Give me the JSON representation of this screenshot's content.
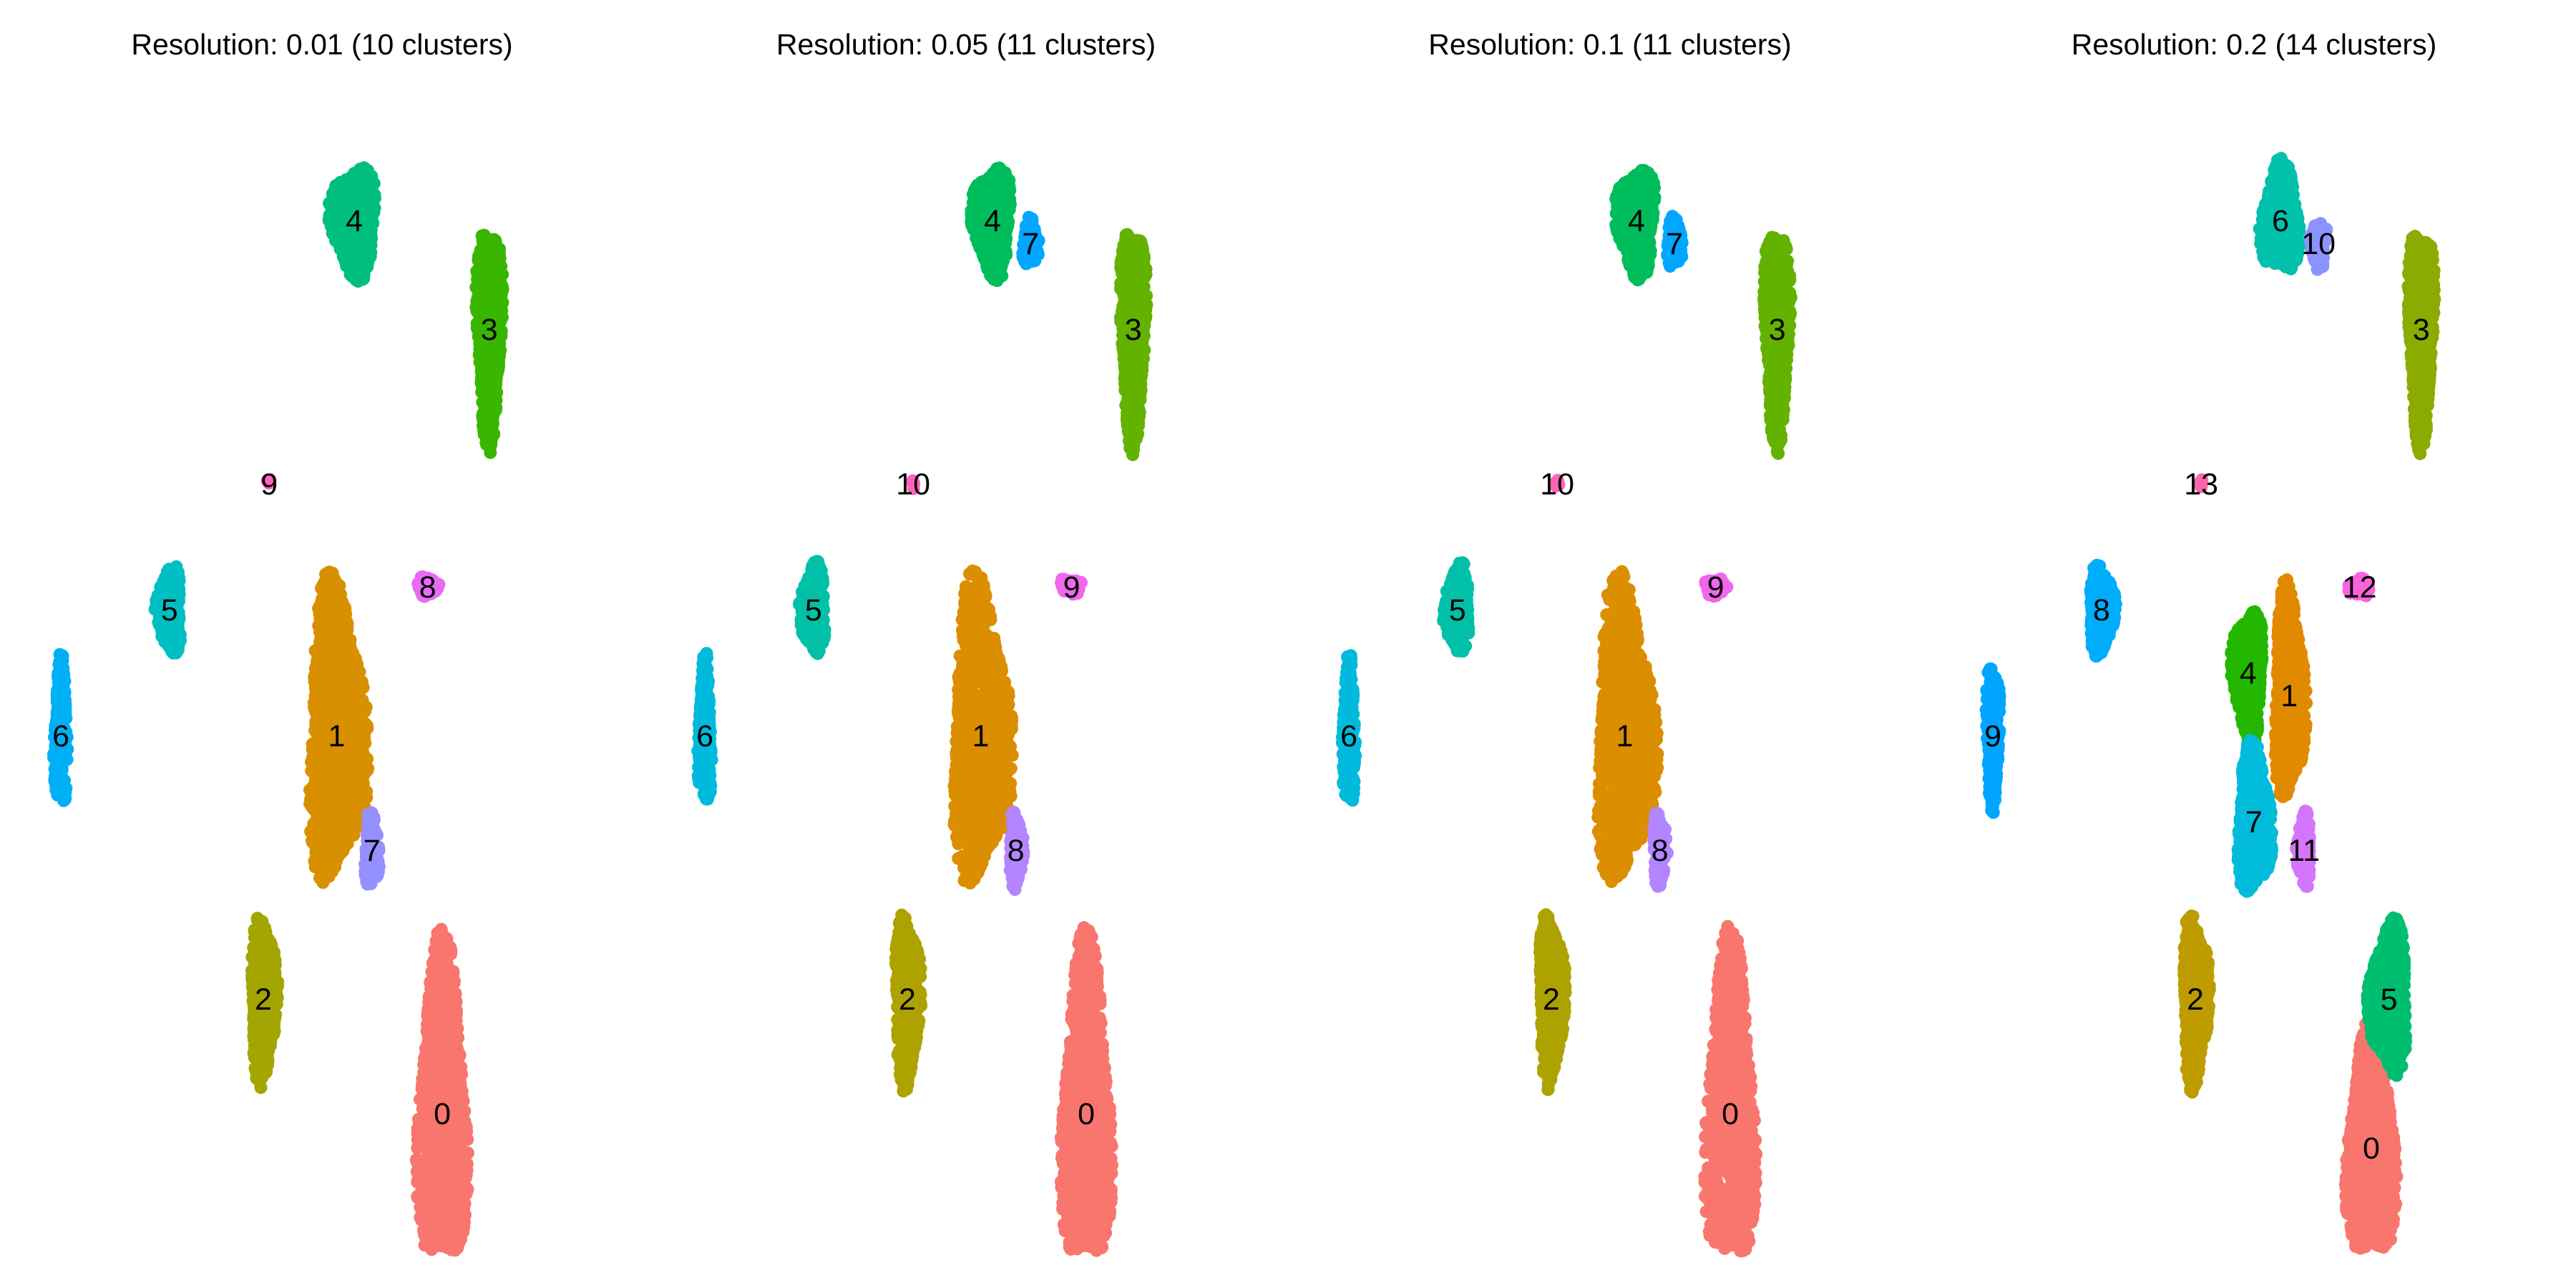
{
  "chart_data": [
    {
      "type": "scatter",
      "title": "Resolution: 0.01 (10 clusters)",
      "xlabel": "",
      "ylabel": "",
      "grid": false,
      "axes_visible": false,
      "clusters": [
        {
          "label": "0",
          "color": "#F8766D",
          "x": 0.705,
          "y": 0.115,
          "rx": 0.048,
          "ry": 0.165
        },
        {
          "label": "1",
          "color": "#D89000",
          "x": 0.525,
          "y": 0.445,
          "rx": 0.057,
          "ry": 0.15
        },
        {
          "label": "2",
          "color": "#A3A500",
          "x": 0.4,
          "y": 0.215,
          "rx": 0.025,
          "ry": 0.085
        },
        {
          "label": "3",
          "color": "#39B600",
          "x": 0.785,
          "y": 0.8,
          "rx": 0.025,
          "ry": 0.11
        },
        {
          "label": "4",
          "color": "#00BF7D",
          "x": 0.555,
          "y": 0.895,
          "rx": 0.045,
          "ry": 0.055
        },
        {
          "label": "5",
          "color": "#00BFC4",
          "x": 0.24,
          "y": 0.555,
          "rx": 0.025,
          "ry": 0.045
        },
        {
          "label": "6",
          "color": "#00B0F6",
          "x": 0.055,
          "y": 0.445,
          "rx": 0.013,
          "ry": 0.075
        },
        {
          "label": "7",
          "color": "#9590FF",
          "x": 0.585,
          "y": 0.345,
          "rx": 0.014,
          "ry": 0.038
        },
        {
          "label": "8",
          "color": "#E76BF3",
          "x": 0.68,
          "y": 0.575,
          "rx": 0.022,
          "ry": 0.01
        },
        {
          "label": "9",
          "color": "#FF62BC",
          "x": 0.41,
          "y": 0.665,
          "rx": 0.005,
          "ry": 0.005
        }
      ]
    },
    {
      "type": "scatter",
      "title": "Resolution: 0.05 (11 clusters)",
      "xlabel": "",
      "ylabel": "",
      "grid": false,
      "axes_visible": false,
      "clusters": [
        {
          "label": "0",
          "color": "#F8766D",
          "x": 0.705,
          "y": 0.115,
          "rx": 0.048,
          "ry": 0.165
        },
        {
          "label": "1",
          "color": "#DB8E00",
          "x": 0.525,
          "y": 0.445,
          "rx": 0.057,
          "ry": 0.15
        },
        {
          "label": "2",
          "color": "#AEA200",
          "x": 0.4,
          "y": 0.215,
          "rx": 0.025,
          "ry": 0.085
        },
        {
          "label": "3",
          "color": "#64B200",
          "x": 0.785,
          "y": 0.8,
          "rx": 0.025,
          "ry": 0.11
        },
        {
          "label": "4",
          "color": "#00BD5C",
          "x": 0.545,
          "y": 0.895,
          "rx": 0.038,
          "ry": 0.055
        },
        {
          "label": "5",
          "color": "#00C1A7",
          "x": 0.24,
          "y": 0.555,
          "rx": 0.025,
          "ry": 0.045
        },
        {
          "label": "6",
          "color": "#00BADE",
          "x": 0.055,
          "y": 0.445,
          "rx": 0.013,
          "ry": 0.075
        },
        {
          "label": "7",
          "color": "#00A6FF",
          "x": 0.61,
          "y": 0.875,
          "rx": 0.016,
          "ry": 0.025
        },
        {
          "label": "8",
          "color": "#B385FF",
          "x": 0.585,
          "y": 0.345,
          "rx": 0.014,
          "ry": 0.038
        },
        {
          "label": "9",
          "color": "#EF67EB",
          "x": 0.68,
          "y": 0.575,
          "rx": 0.022,
          "ry": 0.01
        },
        {
          "label": "10",
          "color": "#FF63B6",
          "x": 0.41,
          "y": 0.665,
          "rx": 0.005,
          "ry": 0.005
        }
      ]
    },
    {
      "type": "scatter",
      "title": "Resolution: 0.1 (11 clusters)",
      "xlabel": "",
      "ylabel": "",
      "grid": false,
      "axes_visible": false,
      "clusters": [
        {
          "label": "0",
          "color": "#F8766D",
          "x": 0.705,
          "y": 0.115,
          "rx": 0.048,
          "ry": 0.165
        },
        {
          "label": "1",
          "color": "#DB8E00",
          "x": 0.525,
          "y": 0.445,
          "rx": 0.057,
          "ry": 0.15
        },
        {
          "label": "2",
          "color": "#AEA200",
          "x": 0.4,
          "y": 0.215,
          "rx": 0.025,
          "ry": 0.085
        },
        {
          "label": "3",
          "color": "#64B200",
          "x": 0.785,
          "y": 0.8,
          "rx": 0.025,
          "ry": 0.11
        },
        {
          "label": "4",
          "color": "#00BD5C",
          "x": 0.545,
          "y": 0.895,
          "rx": 0.038,
          "ry": 0.055
        },
        {
          "label": "5",
          "color": "#00C1A7",
          "x": 0.24,
          "y": 0.555,
          "rx": 0.025,
          "ry": 0.045
        },
        {
          "label": "6",
          "color": "#00BADE",
          "x": 0.055,
          "y": 0.445,
          "rx": 0.013,
          "ry": 0.075
        },
        {
          "label": "7",
          "color": "#00A6FF",
          "x": 0.61,
          "y": 0.875,
          "rx": 0.016,
          "ry": 0.025
        },
        {
          "label": "8",
          "color": "#B385FF",
          "x": 0.585,
          "y": 0.345,
          "rx": 0.014,
          "ry": 0.038
        },
        {
          "label": "9",
          "color": "#EF67EB",
          "x": 0.68,
          "y": 0.575,
          "rx": 0.022,
          "ry": 0.01
        },
        {
          "label": "10",
          "color": "#FF63B6",
          "x": 0.41,
          "y": 0.665,
          "rx": 0.005,
          "ry": 0.005
        }
      ]
    },
    {
      "type": "scatter",
      "title": "Resolution: 0.2 (14 clusters)",
      "xlabel": "",
      "ylabel": "",
      "grid": false,
      "axes_visible": false,
      "clusters": [
        {
          "label": "0",
          "color": "#F8766D",
          "x": 0.7,
          "y": 0.085,
          "rx": 0.048,
          "ry": 0.12
        },
        {
          "label": "1",
          "color": "#E18A00",
          "x": 0.56,
          "y": 0.48,
          "rx": 0.03,
          "ry": 0.105
        },
        {
          "label": "2",
          "color": "#BE9C00",
          "x": 0.4,
          "y": 0.215,
          "rx": 0.025,
          "ry": 0.085
        },
        {
          "label": "3",
          "color": "#8CAB00",
          "x": 0.785,
          "y": 0.8,
          "rx": 0.025,
          "ry": 0.11
        },
        {
          "label": "4",
          "color": "#24B700",
          "x": 0.49,
          "y": 0.5,
          "rx": 0.03,
          "ry": 0.065
        },
        {
          "label": "5",
          "color": "#00BE70",
          "x": 0.73,
          "y": 0.215,
          "rx": 0.038,
          "ry": 0.075
        },
        {
          "label": "6",
          "color": "#00C1AB",
          "x": 0.545,
          "y": 0.895,
          "rx": 0.038,
          "ry": 0.055
        },
        {
          "label": "7",
          "color": "#00BBDA",
          "x": 0.5,
          "y": 0.37,
          "rx": 0.033,
          "ry": 0.075
        },
        {
          "label": "8",
          "color": "#00ACFC",
          "x": 0.24,
          "y": 0.555,
          "rx": 0.025,
          "ry": 0.045
        },
        {
          "label": "9",
          "color": "#00A5FF",
          "x": 0.055,
          "y": 0.445,
          "rx": 0.013,
          "ry": 0.075
        },
        {
          "label": "10",
          "color": "#8B93FF",
          "x": 0.61,
          "y": 0.875,
          "rx": 0.016,
          "ry": 0.025
        },
        {
          "label": "11",
          "color": "#D575FE",
          "x": 0.585,
          "y": 0.345,
          "rx": 0.014,
          "ry": 0.038
        },
        {
          "label": "12",
          "color": "#F962DD",
          "x": 0.68,
          "y": 0.575,
          "rx": 0.022,
          "ry": 0.01
        },
        {
          "label": "13",
          "color": "#FF65AC",
          "x": 0.41,
          "y": 0.665,
          "rx": 0.005,
          "ry": 0.005
        }
      ]
    }
  ]
}
